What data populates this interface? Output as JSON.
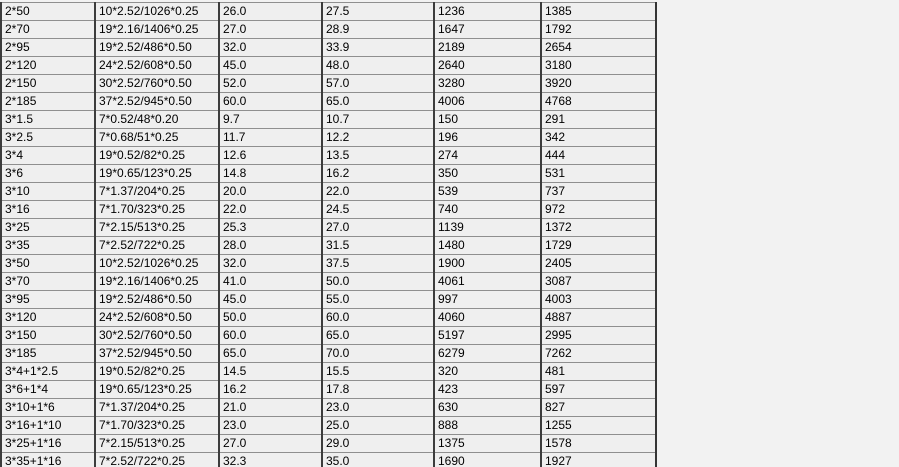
{
  "table": {
    "rows": [
      [
        "2*50",
        "10*2.52/1026*0.25",
        "26.0",
        "27.5",
        "1236",
        "1385"
      ],
      [
        "2*70",
        "19*2.16/1406*0.25",
        "27.0",
        "28.9",
        "1647",
        "1792"
      ],
      [
        "2*95",
        "19*2.52/486*0.50",
        "32.0",
        "33.9",
        "2189",
        "2654"
      ],
      [
        "2*120",
        "24*2.52/608*0.50",
        "45.0",
        "48.0",
        "2640",
        "3180"
      ],
      [
        "2*150",
        "30*2.52/760*0.50",
        "52.0",
        "57.0",
        "3280",
        "3920"
      ],
      [
        "2*185",
        "37*2.52/945*0.50",
        "60.0",
        "65.0",
        "4006",
        "4768"
      ],
      [
        "3*1.5",
        "7*0.52/48*0.20",
        "9.7",
        "10.7",
        "150",
        "291"
      ],
      [
        "3*2.5",
        "7*0.68/51*0.25",
        "11.7",
        "12.2",
        "196",
        "342"
      ],
      [
        "3*4",
        "19*0.52/82*0.25",
        "12.6",
        "13.5",
        "274",
        "444"
      ],
      [
        "3*6",
        "19*0.65/123*0.25",
        "14.8",
        "16.2",
        "350",
        "531"
      ],
      [
        "3*10",
        "7*1.37/204*0.25",
        "20.0",
        "22.0",
        "539",
        "737"
      ],
      [
        "3*16",
        "7*1.70/323*0.25",
        "22.0",
        "24.5",
        "740",
        "972"
      ],
      [
        "3*25",
        "7*2.15/513*0.25",
        "25.3",
        "27.0",
        "1139",
        "1372"
      ],
      [
        "3*35",
        "7*2.52/722*0.25",
        "28.0",
        "31.5",
        "1480",
        "1729"
      ],
      [
        "3*50",
        "10*2.52/1026*0.25",
        "32.0",
        "37.5",
        "1900",
        "2405"
      ],
      [
        "3*70",
        "19*2.16/1406*0.25",
        "41.0",
        "50.0",
        "4061",
        "3087"
      ],
      [
        "3*95",
        "19*2.52/486*0.50",
        "45.0",
        "55.0",
        "997",
        "4003"
      ],
      [
        "3*120",
        "24*2.52/608*0.50",
        "50.0",
        "60.0",
        "4060",
        "4887"
      ],
      [
        "3*150",
        "30*2.52/760*0.50",
        "60.0",
        "65.0",
        "5197",
        "2995"
      ],
      [
        "3*185",
        "37*2.52/945*0.50",
        "65.0",
        "70.0",
        "6279",
        "7262"
      ],
      [
        "3*4+1*2.5",
        "19*0.52/82*0.25",
        "14.5",
        "15.5",
        "320",
        "481"
      ],
      [
        "3*6+1*4",
        "19*0.65/123*0.25",
        "16.2",
        "17.8",
        "423",
        "597"
      ],
      [
        "3*10+1*6",
        "7*1.37/204*0.25",
        "21.0",
        "23.0",
        "630",
        "827"
      ],
      [
        "3*16+1*10",
        "7*1.70/323*0.25",
        "23.0",
        "25.0",
        "888",
        "1255"
      ],
      [
        "3*25+1*16",
        "7*2.15/513*0.25",
        "27.0",
        "29.0",
        "1375",
        "1578"
      ],
      [
        "3*35+1*16",
        "7*2.52/722*0.25",
        "32.3",
        "35.0",
        "1690",
        "1927"
      ]
    ]
  }
}
